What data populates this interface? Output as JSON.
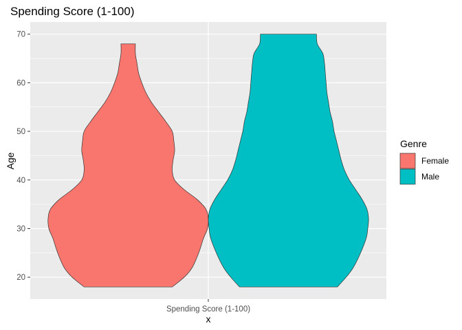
{
  "chart_data": {
    "type": "violin",
    "title": "Spending Score (1-100)",
    "xlabel": "x",
    "ylabel": "Age",
    "categories": [
      "Spending Score (1-100)"
    ],
    "yticks": [
      20,
      30,
      40,
      50,
      60,
      70
    ],
    "ylim": [
      15.5,
      72.5
    ],
    "grid": true,
    "legend": {
      "title": "Genre",
      "position": "right",
      "entries": [
        {
          "label": "Female",
          "color": "#F8766D"
        },
        {
          "label": "Male",
          "color": "#00BFC4"
        }
      ]
    },
    "series": [
      {
        "name": "Female",
        "color": "#F8766D",
        "min": 18,
        "max": 68,
        "density": [
          [
            18,
            0.55
          ],
          [
            20,
            0.7
          ],
          [
            22,
            0.8
          ],
          [
            25,
            0.88
          ],
          [
            28,
            0.94
          ],
          [
            30,
            0.99
          ],
          [
            32,
            1.0
          ],
          [
            34,
            0.97
          ],
          [
            36,
            0.86
          ],
          [
            38,
            0.7
          ],
          [
            40,
            0.58
          ],
          [
            42,
            0.55
          ],
          [
            44,
            0.56
          ],
          [
            46,
            0.58
          ],
          [
            48,
            0.57
          ],
          [
            50,
            0.55
          ],
          [
            52,
            0.47
          ],
          [
            54,
            0.38
          ],
          [
            56,
            0.29
          ],
          [
            58,
            0.22
          ],
          [
            60,
            0.17
          ],
          [
            62,
            0.13
          ],
          [
            64,
            0.11
          ],
          [
            66,
            0.09
          ],
          [
            68,
            0.09
          ]
        ]
      },
      {
        "name": "Male",
        "color": "#00BFC4",
        "min": 18,
        "max": 70,
        "density": [
          [
            18,
            0.61
          ],
          [
            20,
            0.72
          ],
          [
            22,
            0.81
          ],
          [
            25,
            0.9
          ],
          [
            28,
            0.97
          ],
          [
            30,
            0.99
          ],
          [
            32,
            1.0
          ],
          [
            34,
            0.98
          ],
          [
            36,
            0.92
          ],
          [
            38,
            0.84
          ],
          [
            40,
            0.76
          ],
          [
            42,
            0.7
          ],
          [
            44,
            0.66
          ],
          [
            46,
            0.63
          ],
          [
            48,
            0.6
          ],
          [
            50,
            0.57
          ],
          [
            52,
            0.55
          ],
          [
            54,
            0.52
          ],
          [
            56,
            0.5
          ],
          [
            58,
            0.48
          ],
          [
            60,
            0.47
          ],
          [
            62,
            0.46
          ],
          [
            64,
            0.45
          ],
          [
            66,
            0.43
          ],
          [
            68,
            0.36
          ],
          [
            70,
            0.35
          ]
        ]
      }
    ]
  }
}
